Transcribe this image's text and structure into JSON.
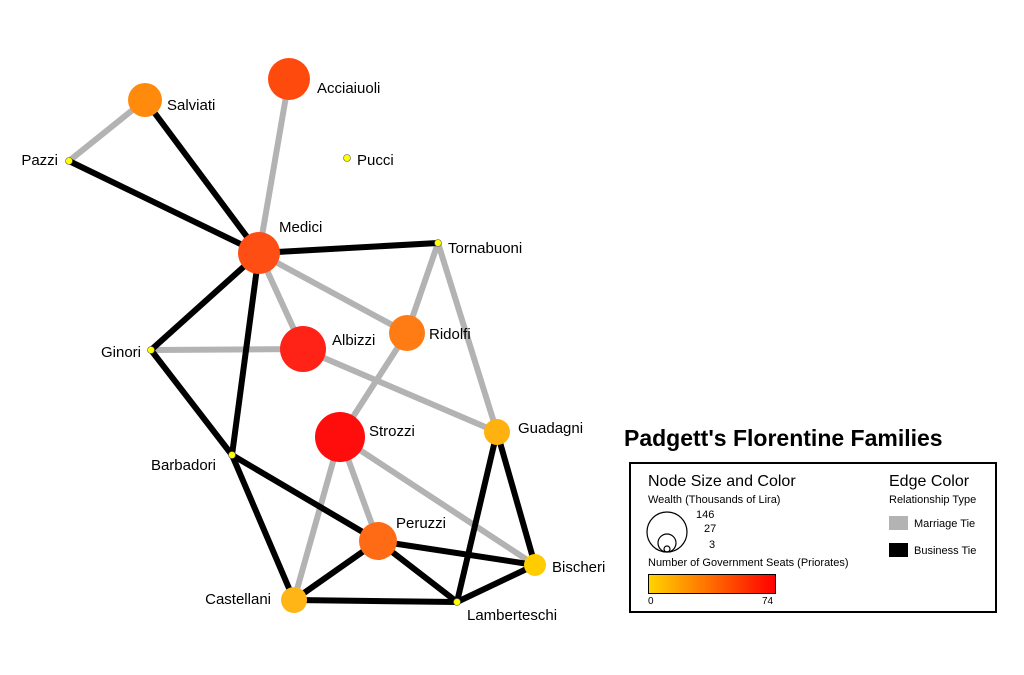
{
  "title": "Padgett's Florentine Families",
  "colors": {
    "marriage": "#b3b3b3",
    "business": "#000000",
    "gradient_low": "#ffd300",
    "gradient_high": "#ff0000",
    "small_node": "#ffff00"
  },
  "nodes": [
    {
      "id": "Acciaiuoli",
      "label": "Acciaiuoli",
      "color": "#ff4a0e"
    },
    {
      "id": "Salviati",
      "label": "Salviati",
      "color": "#ff8a0c"
    },
    {
      "id": "Pazzi",
      "label": "Pazzi",
      "color": "#ffff00"
    },
    {
      "id": "Pucci",
      "label": "Pucci",
      "color": "#ffff00"
    },
    {
      "id": "Medici",
      "label": "Medici",
      "color": "#ff4e14"
    },
    {
      "id": "Tornabuoni",
      "label": "Tornabuoni",
      "color": "#ffff00"
    },
    {
      "id": "Ginori",
      "label": "Ginori",
      "color": "#ffff00"
    },
    {
      "id": "Albizzi",
      "label": "Albizzi",
      "color": "#ff2317"
    },
    {
      "id": "Ridolfi",
      "label": "Ridolfi",
      "color": "#ff7b14"
    },
    {
      "id": "Guadagni",
      "label": "Guadagni",
      "color": "#ffb20f"
    },
    {
      "id": "Strozzi",
      "label": "Strozzi",
      "color": "#ff0c0c"
    },
    {
      "id": "Barbadori",
      "label": "Barbadori",
      "color": "#ffff00"
    },
    {
      "id": "Peruzzi",
      "label": "Peruzzi",
      "color": "#ff6a14"
    },
    {
      "id": "Bischeri",
      "label": "Bischeri",
      "color": "#ffcc00"
    },
    {
      "id": "Castellani",
      "label": "Castellani",
      "color": "#ffb515"
    },
    {
      "id": "Lamberteschi",
      "label": "Lamberteschi",
      "color": "#ffff00"
    }
  ],
  "edges": [
    {
      "source": "Salviati",
      "target": "Pazzi",
      "type": "marriage"
    },
    {
      "source": "Acciaiuoli",
      "target": "Medici",
      "type": "marriage"
    },
    {
      "source": "Medici",
      "target": "Albizzi",
      "type": "marriage"
    },
    {
      "source": "Medici",
      "target": "Ridolfi",
      "type": "marriage"
    },
    {
      "source": "Tornabuoni",
      "target": "Ridolfi",
      "type": "marriage"
    },
    {
      "source": "Tornabuoni",
      "target": "Guadagni",
      "type": "marriage"
    },
    {
      "source": "Ginori",
      "target": "Albizzi",
      "type": "marriage"
    },
    {
      "source": "Albizzi",
      "target": "Guadagni",
      "type": "marriage"
    },
    {
      "source": "Ridolfi",
      "target": "Strozzi",
      "type": "marriage"
    },
    {
      "source": "Strozzi",
      "target": "Peruzzi",
      "type": "marriage"
    },
    {
      "source": "Strozzi",
      "target": "Bischeri",
      "type": "marriage"
    },
    {
      "source": "Strozzi",
      "target": "Castellani",
      "type": "marriage"
    },
    {
      "source": "Pazzi",
      "target": "Medici",
      "type": "business"
    },
    {
      "source": "Salviati",
      "target": "Medici",
      "type": "business"
    },
    {
      "source": "Medici",
      "target": "Tornabuoni",
      "type": "business"
    },
    {
      "source": "Medici",
      "target": "Ginori",
      "type": "business"
    },
    {
      "source": "Medici",
      "target": "Barbadori",
      "type": "business"
    },
    {
      "source": "Ginori",
      "target": "Barbadori",
      "type": "business"
    },
    {
      "source": "Barbadori",
      "target": "Peruzzi",
      "type": "business"
    },
    {
      "source": "Barbadori",
      "target": "Castellani",
      "type": "business"
    },
    {
      "source": "Peruzzi",
      "target": "Castellani",
      "type": "business"
    },
    {
      "source": "Peruzzi",
      "target": "Bischeri",
      "type": "business"
    },
    {
      "source": "Peruzzi",
      "target": "Lamberteschi",
      "type": "business"
    },
    {
      "source": "Castellani",
      "target": "Lamberteschi",
      "type": "business"
    },
    {
      "source": "Guadagni",
      "target": "Bischeri",
      "type": "business"
    },
    {
      "source": "Guadagni",
      "target": "Lamberteschi",
      "type": "business"
    },
    {
      "source": "Bischeri",
      "target": "Lamberteschi",
      "type": "business"
    }
  ],
  "legend": {
    "node_title": "Node Size and Color",
    "wealth_label": "Wealth (Thousands of Lira)",
    "wealth_sizes": [
      "146",
      "27",
      "3"
    ],
    "seats_label": "Number of Government Seats (Priorates)",
    "seats_min": "0",
    "seats_max": "74",
    "edge_title": "Edge Color",
    "reltype_label": "Relationship Type",
    "marriage_label": "Marriage Tie",
    "business_label": "Business Tie"
  }
}
